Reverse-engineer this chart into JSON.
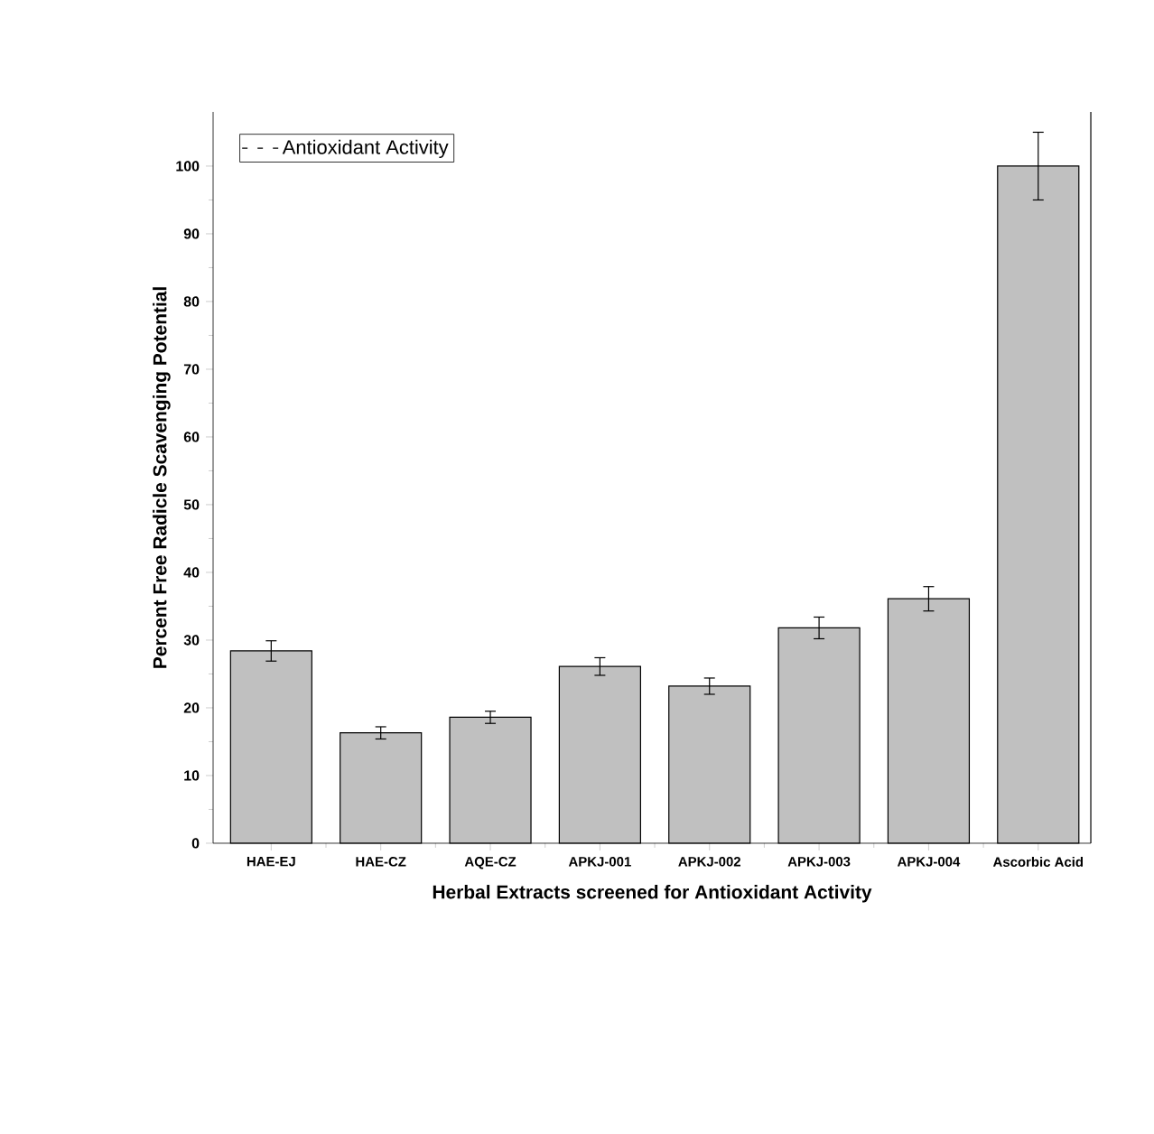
{
  "chart_data": {
    "type": "bar",
    "xlabel": "Herbal Extracts screened for Antioxidant Activity",
    "ylabel": "Percent Free Radicle Scavenging Potential",
    "categories": [
      "HAE-EJ",
      "HAE-CZ",
      "AQE-CZ",
      "APKJ-001",
      "APKJ-002",
      "APKJ-003",
      "APKJ-004",
      "Ascorbic Acid"
    ],
    "series": [
      {
        "name": "Antioxidant Activity",
        "color": "#c0c0c0",
        "values": [
          28.4,
          16.3,
          18.6,
          26.1,
          23.2,
          31.8,
          36.1,
          100
        ],
        "errors": [
          1.5,
          0.9,
          0.9,
          1.3,
          1.2,
          1.6,
          1.8,
          5
        ]
      }
    ],
    "ylim": [
      0,
      108
    ],
    "yticks": [
      0,
      10,
      20,
      30,
      40,
      50,
      60,
      70,
      80,
      90,
      100
    ],
    "legend": "top left",
    "grid": false
  }
}
